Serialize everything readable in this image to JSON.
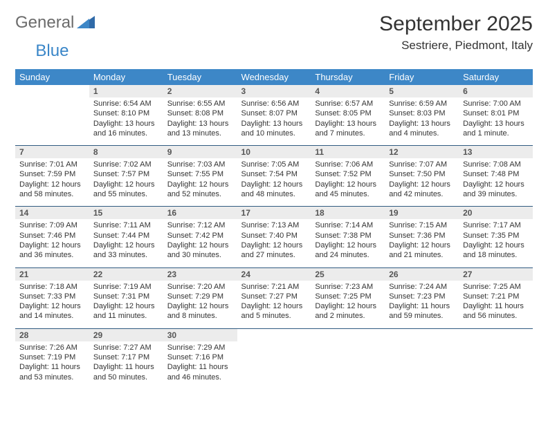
{
  "brand": {
    "name1": "General",
    "name2": "Blue"
  },
  "title": "September 2025",
  "location": "Sestriere, Piedmont, Italy",
  "colors": {
    "header_bg": "#3d87c7",
    "header_text": "#ffffff",
    "daynum_bg": "#ececec",
    "row_divider": "#2f5a80",
    "brand_gray": "#6b6b6b",
    "brand_blue": "#3a86c8"
  },
  "weekdays": [
    "Sunday",
    "Monday",
    "Tuesday",
    "Wednesday",
    "Thursday",
    "Friday",
    "Saturday"
  ],
  "cell_fontsize_pt": 8,
  "header_fontsize_pt": 10,
  "weeks": [
    [
      {
        "n": "",
        "lines": [
          "",
          "",
          "",
          ""
        ],
        "empty": true
      },
      {
        "n": "1",
        "lines": [
          "Sunrise: 6:54 AM",
          "Sunset: 8:10 PM",
          "Daylight: 13 hours",
          "and 16 minutes."
        ]
      },
      {
        "n": "2",
        "lines": [
          "Sunrise: 6:55 AM",
          "Sunset: 8:08 PM",
          "Daylight: 13 hours",
          "and 13 minutes."
        ]
      },
      {
        "n": "3",
        "lines": [
          "Sunrise: 6:56 AM",
          "Sunset: 8:07 PM",
          "Daylight: 13 hours",
          "and 10 minutes."
        ]
      },
      {
        "n": "4",
        "lines": [
          "Sunrise: 6:57 AM",
          "Sunset: 8:05 PM",
          "Daylight: 13 hours",
          "and 7 minutes."
        ]
      },
      {
        "n": "5",
        "lines": [
          "Sunrise: 6:59 AM",
          "Sunset: 8:03 PM",
          "Daylight: 13 hours",
          "and 4 minutes."
        ]
      },
      {
        "n": "6",
        "lines": [
          "Sunrise: 7:00 AM",
          "Sunset: 8:01 PM",
          "Daylight: 13 hours",
          "and 1 minute."
        ]
      }
    ],
    [
      {
        "n": "7",
        "lines": [
          "Sunrise: 7:01 AM",
          "Sunset: 7:59 PM",
          "Daylight: 12 hours",
          "and 58 minutes."
        ]
      },
      {
        "n": "8",
        "lines": [
          "Sunrise: 7:02 AM",
          "Sunset: 7:57 PM",
          "Daylight: 12 hours",
          "and 55 minutes."
        ]
      },
      {
        "n": "9",
        "lines": [
          "Sunrise: 7:03 AM",
          "Sunset: 7:55 PM",
          "Daylight: 12 hours",
          "and 52 minutes."
        ]
      },
      {
        "n": "10",
        "lines": [
          "Sunrise: 7:05 AM",
          "Sunset: 7:54 PM",
          "Daylight: 12 hours",
          "and 48 minutes."
        ]
      },
      {
        "n": "11",
        "lines": [
          "Sunrise: 7:06 AM",
          "Sunset: 7:52 PM",
          "Daylight: 12 hours",
          "and 45 minutes."
        ]
      },
      {
        "n": "12",
        "lines": [
          "Sunrise: 7:07 AM",
          "Sunset: 7:50 PM",
          "Daylight: 12 hours",
          "and 42 minutes."
        ]
      },
      {
        "n": "13",
        "lines": [
          "Sunrise: 7:08 AM",
          "Sunset: 7:48 PM",
          "Daylight: 12 hours",
          "and 39 minutes."
        ]
      }
    ],
    [
      {
        "n": "14",
        "lines": [
          "Sunrise: 7:09 AM",
          "Sunset: 7:46 PM",
          "Daylight: 12 hours",
          "and 36 minutes."
        ]
      },
      {
        "n": "15",
        "lines": [
          "Sunrise: 7:11 AM",
          "Sunset: 7:44 PM",
          "Daylight: 12 hours",
          "and 33 minutes."
        ]
      },
      {
        "n": "16",
        "lines": [
          "Sunrise: 7:12 AM",
          "Sunset: 7:42 PM",
          "Daylight: 12 hours",
          "and 30 minutes."
        ]
      },
      {
        "n": "17",
        "lines": [
          "Sunrise: 7:13 AM",
          "Sunset: 7:40 PM",
          "Daylight: 12 hours",
          "and 27 minutes."
        ]
      },
      {
        "n": "18",
        "lines": [
          "Sunrise: 7:14 AM",
          "Sunset: 7:38 PM",
          "Daylight: 12 hours",
          "and 24 minutes."
        ]
      },
      {
        "n": "19",
        "lines": [
          "Sunrise: 7:15 AM",
          "Sunset: 7:36 PM",
          "Daylight: 12 hours",
          "and 21 minutes."
        ]
      },
      {
        "n": "20",
        "lines": [
          "Sunrise: 7:17 AM",
          "Sunset: 7:35 PM",
          "Daylight: 12 hours",
          "and 18 minutes."
        ]
      }
    ],
    [
      {
        "n": "21",
        "lines": [
          "Sunrise: 7:18 AM",
          "Sunset: 7:33 PM",
          "Daylight: 12 hours",
          "and 14 minutes."
        ]
      },
      {
        "n": "22",
        "lines": [
          "Sunrise: 7:19 AM",
          "Sunset: 7:31 PM",
          "Daylight: 12 hours",
          "and 11 minutes."
        ]
      },
      {
        "n": "23",
        "lines": [
          "Sunrise: 7:20 AM",
          "Sunset: 7:29 PM",
          "Daylight: 12 hours",
          "and 8 minutes."
        ]
      },
      {
        "n": "24",
        "lines": [
          "Sunrise: 7:21 AM",
          "Sunset: 7:27 PM",
          "Daylight: 12 hours",
          "and 5 minutes."
        ]
      },
      {
        "n": "25",
        "lines": [
          "Sunrise: 7:23 AM",
          "Sunset: 7:25 PM",
          "Daylight: 12 hours",
          "and 2 minutes."
        ]
      },
      {
        "n": "26",
        "lines": [
          "Sunrise: 7:24 AM",
          "Sunset: 7:23 PM",
          "Daylight: 11 hours",
          "and 59 minutes."
        ]
      },
      {
        "n": "27",
        "lines": [
          "Sunrise: 7:25 AM",
          "Sunset: 7:21 PM",
          "Daylight: 11 hours",
          "and 56 minutes."
        ]
      }
    ],
    [
      {
        "n": "28",
        "lines": [
          "Sunrise: 7:26 AM",
          "Sunset: 7:19 PM",
          "Daylight: 11 hours",
          "and 53 minutes."
        ]
      },
      {
        "n": "29",
        "lines": [
          "Sunrise: 7:27 AM",
          "Sunset: 7:17 PM",
          "Daylight: 11 hours",
          "and 50 minutes."
        ]
      },
      {
        "n": "30",
        "lines": [
          "Sunrise: 7:29 AM",
          "Sunset: 7:16 PM",
          "Daylight: 11 hours",
          "and 46 minutes."
        ]
      },
      {
        "n": "",
        "lines": [
          "",
          "",
          "",
          ""
        ],
        "empty": true
      },
      {
        "n": "",
        "lines": [
          "",
          "",
          "",
          ""
        ],
        "empty": true
      },
      {
        "n": "",
        "lines": [
          "",
          "",
          "",
          ""
        ],
        "empty": true
      },
      {
        "n": "",
        "lines": [
          "",
          "",
          "",
          ""
        ],
        "empty": true
      }
    ]
  ]
}
